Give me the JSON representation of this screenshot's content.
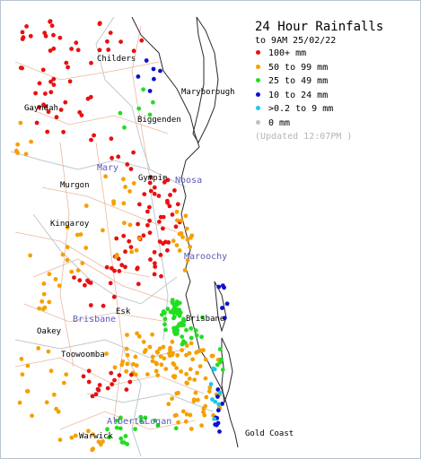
{
  "legend": {
    "title": "24 Hour Rainfalls",
    "subtitle": "to 9AM 25/02/22",
    "updated": "(Updated 12:07PM  )",
    "categories": [
      {
        "label": "100+ mm",
        "color": "#e81010"
      },
      {
        "label": "50  to 99 mm",
        "color": "#f5a000"
      },
      {
        "label": "25  to 49 mm",
        "color": "#22dd22"
      },
      {
        "label": "10  to 24 mm",
        "color": "#1010d0"
      },
      {
        "label": ">0.2 to 9 mm",
        "color": "#19c8f0"
      },
      {
        "label": "0 mm",
        "color": "#c0c0c0"
      }
    ]
  },
  "places": {
    "childers": "Childers",
    "maryborough": "Maryborough",
    "gayndah": "Gayndah",
    "biggenden": "Biggenden",
    "murgon": "Murgon",
    "gympie": "Gympie",
    "kingaroy": "Kingaroy",
    "esk": "Esk",
    "oakey": "Oakey",
    "brisbane": "Brisbane",
    "toowoomba": "Toowoomba",
    "warwick": "Warwick",
    "gold_coast": "Gold Coast"
  },
  "regions": {
    "mary": "Mary",
    "noosa": "Noosa",
    "maroochy": "Maroochy",
    "brisbane": "Brisbane",
    "albert_logan": "Albert&Logan"
  },
  "colors": {
    "red": "#e81010",
    "orange": "#f5a000",
    "green": "#22dd22",
    "blue": "#1010d0",
    "cyan": "#19c8f0",
    "grey": "#c0c0c0",
    "coast": "#2a2a2a",
    "road": "#e8b8a0",
    "boundary": "#c0c8cc",
    "region_label": "#5a5ab8"
  }
}
